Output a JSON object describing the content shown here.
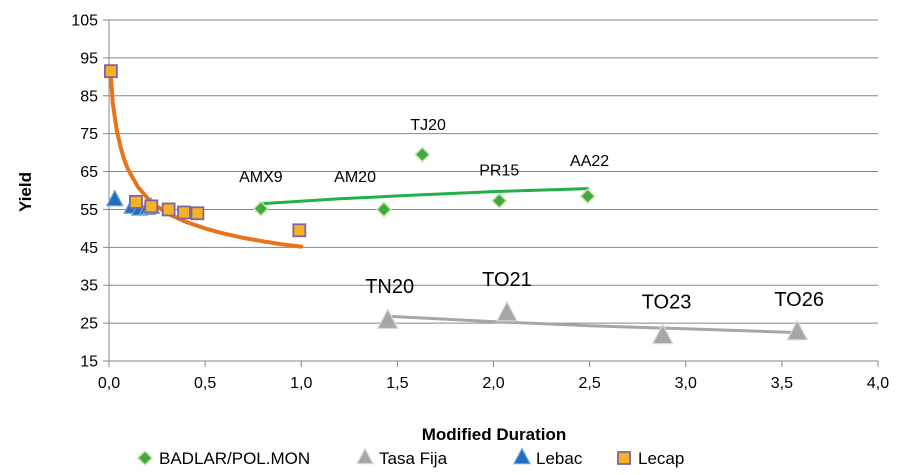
{
  "chart_data": {
    "type": "scatter",
    "title": "",
    "xlabel": "Modified Duration",
    "ylabel": "Yield",
    "xlim": [
      0,
      4
    ],
    "ylim": [
      15,
      105
    ],
    "x_ticks": [
      0,
      0.5,
      1,
      1.5,
      2,
      2.5,
      3,
      3.5,
      4
    ],
    "x_tick_labels": [
      "0,0",
      "0,5",
      "1,0",
      "1,5",
      "2,0",
      "2,5",
      "3,0",
      "3,5",
      "4,0"
    ],
    "y_ticks": [
      15,
      25,
      35,
      45,
      55,
      65,
      75,
      85,
      95,
      105
    ],
    "y_tick_labels": [
      "15",
      "25",
      "35",
      "45",
      "55",
      "65",
      "75",
      "85",
      "95",
      "105"
    ],
    "grid": "horizontal",
    "legend_position": "bottom",
    "series": [
      {
        "name": "BADLAR/POL.MON",
        "marker": "diamond",
        "color": "#3fa83f",
        "trend_color": "#22b04a",
        "points": [
          {
            "x": 0.79,
            "y": 55.2,
            "label": "AMX9"
          },
          {
            "x": 1.43,
            "y": 55.0,
            "label": "AM20"
          },
          {
            "x": 1.63,
            "y": 69.5,
            "label": "TJ20"
          },
          {
            "x": 2.03,
            "y": 57.3,
            "label": "PR15"
          },
          {
            "x": 2.49,
            "y": 58.5,
            "label": "AA22"
          }
        ],
        "trendline": [
          [
            0.79,
            56.5
          ],
          [
            1.2,
            57.8
          ],
          [
            1.6,
            58.8
          ],
          [
            2.0,
            59.7
          ],
          [
            2.49,
            60.5
          ]
        ]
      },
      {
        "name": "Tasa Fija",
        "marker": "triangle",
        "color": "#a6a6a6",
        "trend_color": "#a6a6a6",
        "points": [
          {
            "x": 1.45,
            "y": 25.5,
            "label": "TN20"
          },
          {
            "x": 2.07,
            "y": 27.5,
            "label": "TO21"
          },
          {
            "x": 2.88,
            "y": 21.5,
            "label": "TO23"
          },
          {
            "x": 3.58,
            "y": 22.5,
            "label": "TO26"
          }
        ],
        "trendline": [
          [
            1.45,
            26.8
          ],
          [
            2.0,
            25.4
          ],
          [
            2.5,
            24.3
          ],
          [
            3.0,
            23.5
          ],
          [
            3.58,
            22.5
          ]
        ]
      },
      {
        "name": "Lebac",
        "marker": "triangle",
        "color": "#1f6fbf",
        "points": [
          {
            "x": 0.03,
            "y": 57.5,
            "label": ""
          },
          {
            "x": 0.12,
            "y": 55.5,
            "label": ""
          },
          {
            "x": 0.16,
            "y": 55.0,
            "label": ""
          },
          {
            "x": 0.2,
            "y": 55.2,
            "label": ""
          },
          {
            "x": 0.22,
            "y": 55.5,
            "label": ""
          }
        ]
      },
      {
        "name": "Lecap",
        "marker": "square",
        "color": "#f5b324",
        "trend_color": "#e8731a",
        "points": [
          {
            "x": 0.01,
            "y": 91.5,
            "label": ""
          },
          {
            "x": 0.14,
            "y": 57.0,
            "label": ""
          },
          {
            "x": 0.22,
            "y": 55.8,
            "label": ""
          },
          {
            "x": 0.31,
            "y": 55.0,
            "label": ""
          },
          {
            "x": 0.39,
            "y": 54.2,
            "label": ""
          },
          {
            "x": 0.46,
            "y": 54.0,
            "label": ""
          },
          {
            "x": 0.99,
            "y": 49.5,
            "label": ""
          }
        ],
        "trendline": [
          [
            0.01,
            90
          ],
          [
            0.02,
            83
          ],
          [
            0.04,
            76
          ],
          [
            0.06,
            71.5
          ],
          [
            0.08,
            68
          ],
          [
            0.1,
            65.5
          ],
          [
            0.15,
            61
          ],
          [
            0.2,
            58
          ],
          [
            0.25,
            55.8
          ],
          [
            0.3,
            54
          ],
          [
            0.4,
            51.7
          ],
          [
            0.5,
            50
          ],
          [
            0.6,
            48.6
          ],
          [
            0.7,
            47.5
          ],
          [
            0.8,
            46.6
          ],
          [
            0.9,
            45.8
          ],
          [
            1.0,
            45.2
          ]
        ]
      }
    ],
    "annotations": [
      {
        "text": "AMX9",
        "x": 0.79,
        "y": 62.3,
        "size": "small"
      },
      {
        "text": "AM20",
        "x": 1.28,
        "y": 62.3,
        "size": "small"
      },
      {
        "text": "TJ20",
        "x": 1.66,
        "y": 76.0,
        "size": "small"
      },
      {
        "text": "PR15",
        "x": 2.03,
        "y": 64.0,
        "size": "small"
      },
      {
        "text": "AA22",
        "x": 2.5,
        "y": 66.5,
        "size": "small"
      },
      {
        "text": "TN20",
        "x": 1.46,
        "y": 33.0,
        "size": "large"
      },
      {
        "text": "TO21",
        "x": 2.07,
        "y": 34.8,
        "size": "large"
      },
      {
        "text": "TO23",
        "x": 2.9,
        "y": 28.8,
        "size": "large"
      },
      {
        "text": "TO26",
        "x": 3.59,
        "y": 29.5,
        "size": "large"
      }
    ]
  }
}
